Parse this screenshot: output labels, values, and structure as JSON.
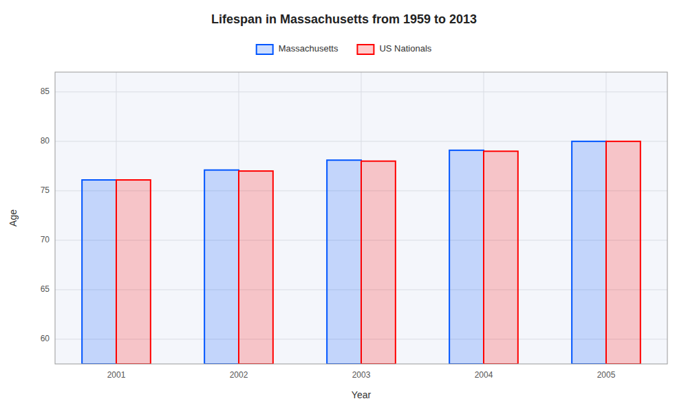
{
  "chart_data": {
    "type": "bar",
    "title": "Lifespan in Massachusetts from 1959 to 2013",
    "x_label": "Year",
    "y_label": "Age",
    "categories": [
      "2001",
      "2002",
      "2003",
      "2004",
      "2005"
    ],
    "series": [
      {
        "name": "Massachusetts",
        "color": "#0055ff",
        "values": [
          76.1,
          77.1,
          78.1,
          79.1,
          80.0
        ]
      },
      {
        "name": "US Nationals",
        "color": "#ff0000",
        "values": [
          76.1,
          77.0,
          78.0,
          79.0,
          80.0
        ]
      }
    ],
    "ylim": [
      57.5,
      87
    ],
    "yticks": [
      60,
      65,
      70,
      75,
      80,
      85
    ],
    "grid": true,
    "legend": "top"
  }
}
